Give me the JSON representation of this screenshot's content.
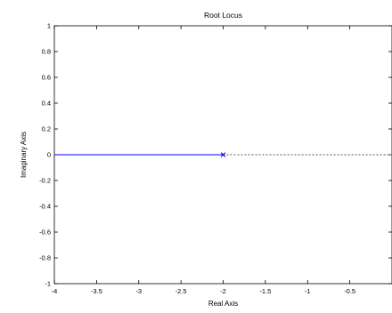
{
  "chart_data": {
    "type": "line",
    "title": "Root Locus",
    "xlabel": "Real Axis",
    "ylabel": "Imaginary Axis",
    "xlim": [
      -4,
      0
    ],
    "ylim": [
      -1,
      1
    ],
    "xticks": [
      -4,
      -3.5,
      -3,
      -2.5,
      -2,
      -1.5,
      -1,
      -0.5
    ],
    "xtick_labels": [
      "-4",
      "-3.5",
      "-3",
      "-2.5",
      "-2",
      "-1.5",
      "-1",
      "-0.5"
    ],
    "yticks": [
      1,
      0.8,
      0.6,
      0.4,
      0.2,
      0,
      -0.2,
      -0.4,
      -0.6,
      -0.8,
      -1
    ],
    "ytick_labels": [
      "1",
      "0.8",
      "0.6",
      "0.4",
      "0.2",
      "0",
      "-0.2",
      "-0.4",
      "-0.6",
      "-0.8",
      "-1"
    ],
    "grid": false,
    "series": [
      {
        "x": [
          -4,
          -2
        ],
        "y": [
          0,
          0
        ],
        "color": "#0000ff",
        "style": "solid"
      },
      {
        "x": [
          -2,
          0
        ],
        "y": [
          0,
          0
        ],
        "color": "#555555",
        "style": "dotted"
      }
    ],
    "poles": [
      {
        "x": -2,
        "y": 0,
        "color": "#0000ff"
      }
    ]
  }
}
